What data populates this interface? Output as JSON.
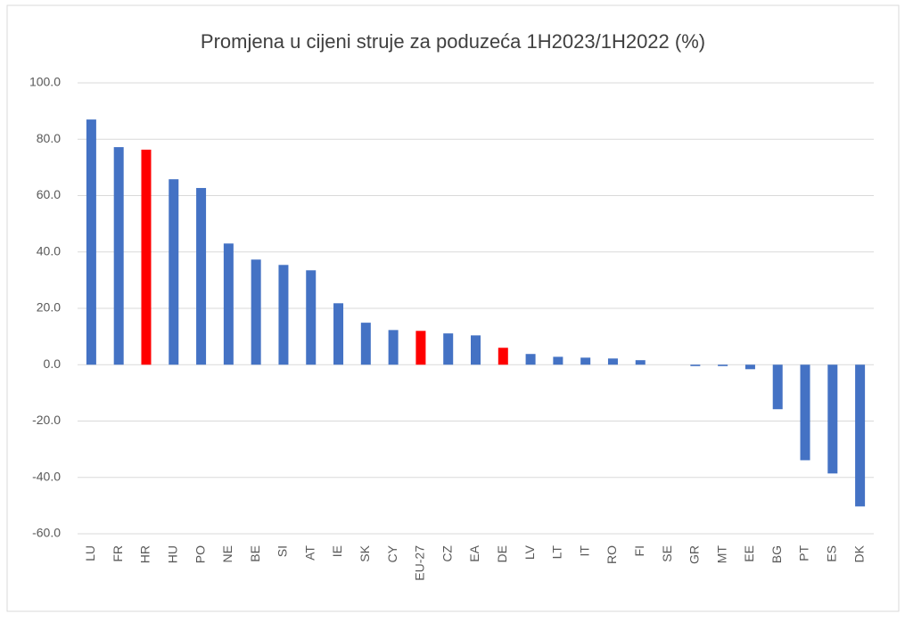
{
  "chart_data": {
    "type": "bar",
    "title": "Promjena u cijeni struje za poduzeća 1H2023/1H2022 (%)",
    "categories": [
      "LU",
      "FR",
      "HR",
      "HU",
      "PO",
      "NE",
      "BE",
      "SI",
      "AT",
      "IE",
      "SK",
      "CY",
      "EU-27",
      "CZ",
      "EA",
      "DE",
      "LV",
      "LT",
      "IT",
      "RO",
      "FI",
      "SE",
      "GR",
      "MT",
      "EE",
      "BG",
      "PT",
      "ES",
      "DK"
    ],
    "values": [
      87.0,
      77.2,
      76.3,
      65.8,
      62.7,
      43.0,
      37.3,
      35.4,
      33.5,
      21.8,
      14.9,
      12.3,
      12.0,
      11.1,
      10.4,
      6.0,
      3.8,
      2.8,
      2.5,
      2.2,
      1.6,
      0,
      -0.5,
      -0.5,
      -1.6,
      -15.8,
      -33.9,
      -38.6,
      -50.3
    ],
    "colors": [
      "#4472c4",
      "#4472c4",
      "#ff0000",
      "#4472c4",
      "#4472c4",
      "#4472c4",
      "#4472c4",
      "#4472c4",
      "#4472c4",
      "#4472c4",
      "#4472c4",
      "#4472c4",
      "#ff0000",
      "#4472c4",
      "#4472c4",
      "#ff0000",
      "#4472c4",
      "#4472c4",
      "#4472c4",
      "#4472c4",
      "#4472c4",
      "#4472c4",
      "#4472c4",
      "#4472c4",
      "#4472c4",
      "#4472c4",
      "#4472c4",
      "#4472c4",
      "#4472c4"
    ],
    "ylim": [
      -60,
      100
    ],
    "yticks": [
      {
        "value": -60,
        "label": "-60.0"
      },
      {
        "value": -40,
        "label": "-40.0"
      },
      {
        "value": -20,
        "label": "-20.0"
      },
      {
        "value": 0,
        "label": "0.0"
      },
      {
        "value": 20,
        "label": "20.0"
      },
      {
        "value": 40,
        "label": "40.0"
      },
      {
        "value": 60,
        "label": "60.0"
      },
      {
        "value": 80,
        "label": "80.0"
      },
      {
        "value": 100,
        "label": "100.0"
      }
    ],
    "grid": true
  }
}
